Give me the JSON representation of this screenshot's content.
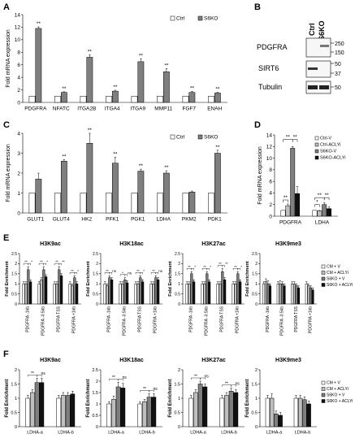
{
  "panel_labels": {
    "A": "A",
    "B": "B",
    "C": "C",
    "D": "D",
    "E": "E",
    "F": "F"
  },
  "colors": {
    "ctrl": "#ffffff",
    "s6ko": "#7f7f7f",
    "cm_aclyi": "#bfbfbf",
    "s6ko_aclyi": "#111111",
    "axis": "#000000"
  },
  "western_blot": {
    "lanes": [
      "Ctrl",
      "S6KO"
    ],
    "rows": [
      {
        "label": "PDGFRA",
        "markers": [
          "250",
          "150"
        ]
      },
      {
        "label": "SIRT6",
        "markers": [
          "50",
          "37"
        ]
      },
      {
        "label": "Tubulin",
        "markers": [
          "50"
        ]
      }
    ]
  },
  "chart_data": [
    {
      "id": "A",
      "type": "bar",
      "ylabel": "Fold mRNA expression",
      "ylim": [
        0,
        14
      ],
      "yticks": [
        "0",
        "2",
        "4",
        "6",
        "8",
        "10",
        "12",
        "14"
      ],
      "categories": [
        "PDGFRA",
        "NFATC",
        "ITGA2B",
        "ITGA4",
        "ITGA9",
        "MMP11",
        "FGF7",
        "ENAH"
      ],
      "legend": [
        "Ctrl",
        "S6KO"
      ],
      "legend_position": "top-right",
      "series": [
        {
          "name": "Ctrl",
          "values": [
            1,
            1,
            1,
            1,
            1,
            1,
            1,
            1
          ],
          "err": [
            0,
            0,
            0,
            0,
            0,
            0,
            0,
            0
          ]
        },
        {
          "name": "S6KO",
          "values": [
            11.8,
            1.6,
            7.2,
            1.8,
            6.5,
            4.9,
            1.6,
            1.5
          ],
          "err": [
            0.25,
            0.1,
            0.4,
            0.15,
            0.45,
            0.5,
            0.15,
            0.1
          ]
        }
      ],
      "sig": [
        "**",
        "**",
        "**",
        "**",
        "**",
        "**",
        "**",
        "**"
      ]
    },
    {
      "id": "C",
      "type": "bar",
      "ylabel": "Fold mRNA expression",
      "ylim": [
        0,
        4
      ],
      "yticks": [
        "0",
        "1",
        "2",
        "3",
        "4"
      ],
      "categories": [
        "GLUT1",
        "GLUT4",
        "HK2",
        "PFK1",
        "PGK1",
        "LDHA",
        "PKM2",
        "PDK1"
      ],
      "legend": [
        "Ctrl",
        "S6KO"
      ],
      "legend_position": "top-right",
      "series": [
        {
          "name": "Ctrl",
          "values": [
            1,
            1,
            1,
            1,
            1,
            1,
            1,
            1
          ],
          "err": [
            0,
            0,
            0,
            0,
            0,
            0,
            0,
            0
          ]
        },
        {
          "name": "S6KO",
          "values": [
            1.7,
            2.6,
            3.5,
            2.5,
            2.1,
            2.0,
            1.05,
            3.0
          ],
          "err": [
            0.3,
            0.08,
            0.5,
            0.3,
            0.1,
            0.12,
            0.05,
            0.15
          ]
        }
      ],
      "sig": [
        "",
        "**",
        "**",
        "**",
        "**",
        "**",
        "",
        "**"
      ]
    },
    {
      "id": "D",
      "type": "bar",
      "ylabel": "Fold mRNA expression",
      "ylim": [
        0,
        14
      ],
      "yticks": [
        "0",
        "2",
        "4",
        "6",
        "8",
        "10",
        "12",
        "14"
      ],
      "categories": [
        "PDGFRA",
        "LDHA"
      ],
      "legend": [
        "Ctrl-V",
        "Ctrl-ACLYi",
        "S6KO-V",
        "S6KO-ACLYi"
      ],
      "legend_position": "top-right",
      "series": [
        {
          "name": "Ctrl-V",
          "values": [
            1,
            1
          ],
          "err": [
            0,
            0
          ]
        },
        {
          "name": "Ctrl-ACLYi",
          "values": [
            1.8,
            0.9
          ],
          "err": [
            0.3,
            0.1
          ]
        },
        {
          "name": "S6KO-V",
          "values": [
            11.7,
            2.0
          ],
          "err": [
            0.3,
            0.3
          ]
        },
        {
          "name": "S6KO-ACLYi",
          "values": [
            3.9,
            1.3
          ],
          "err": [
            1.2,
            0.3
          ]
        }
      ],
      "brackets": [
        [
          "**",
          "**",
          "**"
        ],
        [
          "*",
          "**",
          "**"
        ]
      ]
    },
    {
      "id": "E1",
      "type": "bar",
      "title": "H3K9ac",
      "ylabel": "Fold Enrichment",
      "ylim": [
        0,
        2.5
      ],
      "yticks": [
        "0",
        "0.5",
        "1",
        "1.5",
        "2",
        "2.5"
      ],
      "categories": [
        "PDGFRA -1kb",
        "PDGFRA -0.5kb",
        "PDGFRA TSS",
        "PDGFRA +1kb"
      ],
      "series": [
        {
          "name": "CM + V",
          "values": [
            1,
            1,
            1,
            1
          ],
          "err": [
            0.1,
            0.1,
            0.1,
            0.1
          ]
        },
        {
          "name": "CM + ACLYi",
          "values": [
            1.0,
            1.2,
            1.0,
            0.9
          ],
          "err": [
            0.1,
            0.1,
            0.1,
            0.1
          ]
        },
        {
          "name": "S6KO + V",
          "values": [
            1.7,
            1.7,
            1.7,
            1.3
          ],
          "err": [
            0.15,
            0.15,
            0.15,
            0.1
          ]
        },
        {
          "name": "S6KO + ACLYi",
          "values": [
            1.1,
            1.35,
            1.4,
            1.0
          ],
          "err": [
            0.1,
            0.1,
            0.1,
            0.1
          ]
        }
      ],
      "sig": [
        [
          "**",
          "*"
        ],
        [
          "**",
          "*"
        ],
        [
          "**",
          "**"
        ],
        [
          "**",
          "*"
        ]
      ]
    },
    {
      "id": "E2",
      "type": "bar",
      "title": "H3K18ac",
      "ylabel": "Fold Enrichment",
      "ylim": [
        0,
        2.5
      ],
      "yticks": [
        "0",
        "0.5",
        "1",
        "1.5",
        "2",
        "2.5"
      ],
      "categories": [
        "PDGFRA -1kb",
        "PDGFRA -0.5kb",
        "PDGFRA TSS",
        "PDGFRA +1kb"
      ],
      "series": [
        {
          "name": "CM + V",
          "values": [
            1,
            1,
            1,
            1
          ],
          "err": [
            0.1,
            0.1,
            0.1,
            0.1
          ]
        },
        {
          "name": "CM + ACLYi",
          "values": [
            0.9,
            1.0,
            1.0,
            1.0
          ],
          "err": [
            0.1,
            0.1,
            0.1,
            0.1
          ]
        },
        {
          "name": "S6KO + V",
          "values": [
            1.3,
            1.2,
            1.3,
            1.3
          ],
          "err": [
            0.1,
            0.1,
            0.1,
            0.1
          ]
        },
        {
          "name": "S6KO + ACLYi",
          "values": [
            1.2,
            1.05,
            1.1,
            1.2
          ],
          "err": [
            0.1,
            0.1,
            0.1,
            0.1
          ]
        }
      ],
      "sig": [
        [
          "**",
          "ns"
        ],
        [
          "*",
          "ns"
        ],
        [
          "**",
          "*"
        ],
        [
          "**",
          "ns"
        ]
      ]
    },
    {
      "id": "E3",
      "type": "bar",
      "title": "H3K27ac",
      "ylabel": "Fold Enrichment",
      "ylim": [
        0,
        2.5
      ],
      "yticks": [
        "0",
        "0.5",
        "1",
        "1.5",
        "2",
        "2.5"
      ],
      "categories": [
        "PDGFRA -1kb",
        "PDGFRA -0.5kb",
        "PDGFRA TSS",
        "PDGFRA +1kb"
      ],
      "series": [
        {
          "name": "CM + V",
          "values": [
            1,
            1,
            1,
            1
          ],
          "err": [
            0.1,
            0.1,
            0.1,
            0.1
          ]
        },
        {
          "name": "CM + ACLYi",
          "values": [
            1.0,
            1.0,
            1.0,
            1.0
          ],
          "err": [
            0.1,
            0.1,
            0.1,
            0.1
          ]
        },
        {
          "name": "S6KO + V",
          "values": [
            1.5,
            1.5,
            1.6,
            1.5
          ],
          "err": [
            0.1,
            0.1,
            0.15,
            0.1
          ]
        },
        {
          "name": "S6KO + ACLYi",
          "values": [
            1.1,
            1.1,
            1.2,
            1.1
          ],
          "err": [
            0.1,
            0.1,
            0.1,
            0.1
          ]
        }
      ],
      "sig": [
        [
          "**",
          "*"
        ],
        [
          "**",
          "*"
        ],
        [
          "**",
          "**"
        ],
        [
          "**",
          "*"
        ]
      ]
    },
    {
      "id": "E4",
      "type": "bar",
      "title": "H3K9me3",
      "ylabel": "Fold Enrichment",
      "ylim": [
        0,
        2.5
      ],
      "yticks": [
        "0",
        "0.5",
        "1",
        "1.5",
        "2",
        "2.5"
      ],
      "categories": [
        "PDGFRA -1kb",
        "PDGFRA -0.5kb",
        "PDGFRA TSS",
        "PDGFRA +1kb"
      ],
      "legend": [
        "CM + V",
        "CM + ACLYi",
        "S6KO + V",
        "S6KO + ACLYi"
      ],
      "legend_position": "right",
      "series": [
        {
          "name": "CM + V",
          "values": [
            1,
            1,
            1,
            1
          ],
          "err": [
            0.1,
            0.1,
            0.1,
            0.1
          ]
        },
        {
          "name": "CM + ACLYi",
          "values": [
            1.1,
            1.0,
            1.0,
            0.9
          ],
          "err": [
            0.15,
            0.15,
            0.1,
            0.1
          ]
        },
        {
          "name": "S6KO + V",
          "values": [
            1.0,
            1.0,
            0.9,
            0.8
          ],
          "err": [
            0.15,
            0.1,
            0.1,
            0.1
          ]
        },
        {
          "name": "S6KO + ACLYi",
          "values": [
            0.9,
            0.9,
            0.8,
            0.7
          ],
          "err": [
            0.1,
            0.1,
            0.1,
            0.1
          ]
        }
      ],
      "sig": [
        [
          "",
          ""
        ],
        [
          "",
          ""
        ],
        [
          "",
          ""
        ],
        [
          "",
          ""
        ]
      ]
    },
    {
      "id": "F1",
      "type": "bar",
      "title": "H3K9ac",
      "ylabel": "Fold Enrichment",
      "ylim": [
        0,
        2
      ],
      "yticks": [
        "0",
        "0.5",
        "1",
        "1.5",
        "2"
      ],
      "categories": [
        "LDHA-a",
        "LDHA-b"
      ],
      "series": [
        {
          "name": "CM + V",
          "values": [
            1,
            1
          ],
          "err": [
            0.1,
            0.1
          ]
        },
        {
          "name": "CM + ACLYi",
          "values": [
            1.2,
            1.1
          ],
          "err": [
            0.1,
            0.1
          ]
        },
        {
          "name": "S6KO + V",
          "values": [
            1.55,
            1.1
          ],
          "err": [
            0.15,
            0.1
          ]
        },
        {
          "name": "S6KO + ACLYi",
          "values": [
            1.55,
            1.15
          ],
          "err": [
            0.15,
            0.1
          ]
        }
      ],
      "sig": [
        [
          "**",
          "ns"
        ],
        [
          "",
          ""
        ]
      ]
    },
    {
      "id": "F2",
      "type": "bar",
      "title": "H3K18ac",
      "ylabel": "Fold Enrichment",
      "ylim": [
        0,
        2.5
      ],
      "yticks": [
        "0",
        "0.5",
        "1",
        "1.5",
        "2",
        "2.5"
      ],
      "categories": [
        "LDHA-a",
        "LDHA-b"
      ],
      "series": [
        {
          "name": "CM + V",
          "values": [
            1,
            1
          ],
          "err": [
            0.1,
            0.1
          ]
        },
        {
          "name": "CM + ACLYi",
          "values": [
            1.2,
            1.1
          ],
          "err": [
            0.15,
            0.1
          ]
        },
        {
          "name": "S6KO + V",
          "values": [
            1.75,
            1.3
          ],
          "err": [
            0.2,
            0.15
          ]
        },
        {
          "name": "S6KO + ACLYi",
          "values": [
            1.7,
            1.3
          ],
          "err": [
            0.2,
            0.15
          ]
        }
      ],
      "sig": [
        [
          "**",
          "ns"
        ],
        [
          "**",
          "ns"
        ]
      ]
    },
    {
      "id": "F3",
      "type": "bar",
      "title": "H3K27ac",
      "ylabel": "Fold Enrichment",
      "ylim": [
        0,
        2
      ],
      "yticks": [
        "0",
        "0.5",
        "1",
        "1.5",
        "2"
      ],
      "categories": [
        "LDHA-a",
        "LDHA-b"
      ],
      "series": [
        {
          "name": "CM + V",
          "values": [
            1,
            1
          ],
          "err": [
            0.1,
            0.1
          ]
        },
        {
          "name": "CM + ACLYi",
          "values": [
            1.2,
            1.1
          ],
          "err": [
            0.1,
            0.1
          ]
        },
        {
          "name": "S6KO + V",
          "values": [
            1.5,
            1.25
          ],
          "err": [
            0.1,
            0.1
          ]
        },
        {
          "name": "S6KO + ACLYi",
          "values": [
            1.4,
            1.2
          ],
          "err": [
            0.1,
            0.1
          ]
        }
      ],
      "sig": [
        [
          "**",
          "ns"
        ],
        [
          "**",
          "ns"
        ]
      ]
    },
    {
      "id": "F4",
      "type": "bar",
      "title": "H3K9me3",
      "ylabel": "Fold Enrichment",
      "ylim": [
        0,
        2
      ],
      "yticks": [
        "0",
        "0.5",
        "1",
        "1.5",
        "2"
      ],
      "categories": [
        "LDHA-a",
        "LDHA-b"
      ],
      "legend": [
        "CM + V",
        "CM + ACLYi",
        "S6KO + V",
        "S6KO + ACLYi"
      ],
      "legend_position": "right",
      "series": [
        {
          "name": "CM + V",
          "values": [
            1,
            1
          ],
          "err": [
            0.1,
            0.1
          ]
        },
        {
          "name": "CM + ACLYi",
          "values": [
            1.0,
            1.0
          ],
          "err": [
            0.15,
            0.1
          ]
        },
        {
          "name": "S6KO + V",
          "values": [
            0.45,
            0.95
          ],
          "err": [
            0.1,
            0.1
          ]
        },
        {
          "name": "S6KO + ACLYi",
          "values": [
            0.4,
            0.8
          ],
          "err": [
            0.1,
            0.1
          ]
        }
      ],
      "sig": [
        [
          "",
          ""
        ],
        [
          "",
          ""
        ]
      ]
    }
  ]
}
